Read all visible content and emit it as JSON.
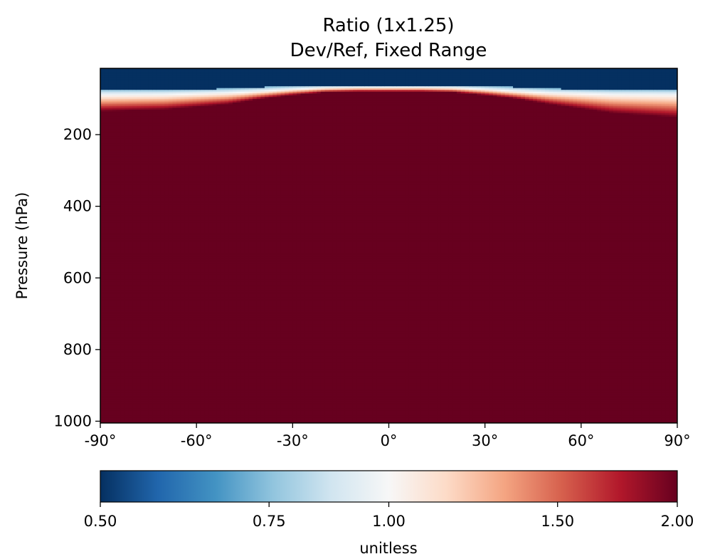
{
  "chart_data": {
    "type": "heatmap",
    "title": "Ratio (1x1.25)",
    "subtitle": "Dev/Ref, Fixed Range",
    "xlabel": "",
    "ylabel": "Pressure (hPa)",
    "xlim": [
      -90,
      90
    ],
    "ylim": [
      1005,
      15
    ],
    "x_ticks": [
      -90,
      -60,
      -30,
      0,
      30,
      60,
      90
    ],
    "x_tick_labels": [
      "-90°",
      "-60°",
      "-30°",
      "0°",
      "30°",
      "60°",
      "90°"
    ],
    "y_ticks": [
      200,
      400,
      600,
      800,
      1000
    ],
    "y_tick_labels": [
      "200",
      "400",
      "600",
      "800",
      "1000"
    ],
    "grid": false,
    "colormap": "RdBu_r",
    "colorbar": {
      "orientation": "horizontal",
      "min": 0.5,
      "max": 2.0,
      "ticks": [
        0.5,
        0.75,
        1.0,
        1.5,
        2.0
      ],
      "tick_labels": [
        "0.50",
        "0.75",
        "1.00",
        "1.50",
        "2.00"
      ],
      "label": "unitless",
      "scale": "log"
    },
    "latitude_bins": [
      -90,
      -80,
      -70,
      -60,
      -50,
      -40,
      -30,
      -20,
      -10,
      0,
      10,
      20,
      30,
      40,
      50,
      60,
      70,
      80,
      90
    ],
    "transition_levels_hPa": {
      "latitude": [
        -90,
        -70,
        -50,
        -40,
        -30,
        -20,
        -10,
        0,
        10,
        20,
        30,
        40,
        50,
        70,
        90
      ],
      "below_0_75": [
        75,
        75,
        72,
        68,
        65,
        63,
        63,
        63,
        63,
        63,
        65,
        68,
        72,
        75,
        75
      ],
      "ratio_1_00": [
        90,
        89,
        84,
        80,
        74,
        70,
        69,
        69,
        69,
        70,
        74,
        80,
        84,
        89,
        90
      ],
      "above_2_00": [
        135,
        130,
        115,
        100,
        90,
        82,
        80,
        80,
        80,
        82,
        90,
        100,
        115,
        140,
        152
      ]
    },
    "value_above_transition": 0.5,
    "value_below_transition": 2.0
  }
}
